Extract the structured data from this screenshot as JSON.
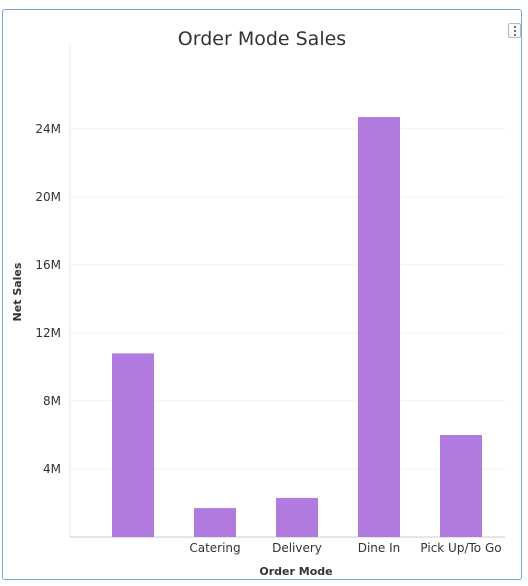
{
  "chart_data": {
    "type": "bar",
    "title": "Order Mode Sales",
    "xlabel": "Order Mode",
    "ylabel": "Net Sales",
    "categories": [
      "",
      "Catering",
      "Delivery",
      "Dine In",
      "Pick Up/To Go"
    ],
    "category_display": [
      "",
      "Catering",
      "Delivery",
      "Dine In",
      "Pick  Up/To  Go"
    ],
    "values": [
      10800000,
      1700000,
      2300000,
      24700000,
      6000000
    ],
    "yticks": [
      4000000,
      8000000,
      12000000,
      16000000,
      20000000,
      24000000
    ],
    "ytick_labels": [
      "4M",
      "8M",
      "12M",
      "16M",
      "20M",
      "24M"
    ],
    "ylim": [
      0,
      28500000
    ],
    "grid": true,
    "bar_color": "#b07ade"
  },
  "icons": {
    "menu": "more-vertical-icon"
  }
}
